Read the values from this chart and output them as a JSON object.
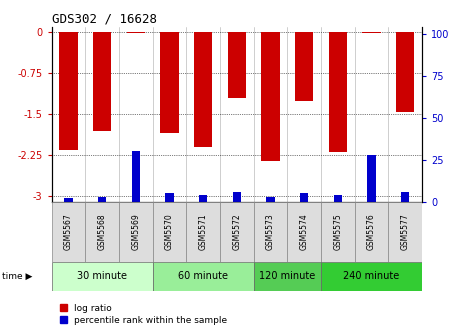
{
  "title": "GDS302 / 16628",
  "samples": [
    "GSM5567",
    "GSM5568",
    "GSM5569",
    "GSM5570",
    "GSM5571",
    "GSM5572",
    "GSM5573",
    "GSM5574",
    "GSM5575",
    "GSM5576",
    "GSM5577"
  ],
  "log_ratios": [
    -2.15,
    -1.8,
    -0.02,
    -1.85,
    -2.1,
    -1.2,
    -2.35,
    -1.25,
    -2.2,
    -0.01,
    -1.45
  ],
  "percentile_ranks": [
    2,
    3,
    30,
    5,
    4,
    6,
    3,
    5,
    4,
    28,
    6
  ],
  "groups": [
    {
      "label": "30 minute",
      "start": 0,
      "end": 3,
      "color": "#ccffcc"
    },
    {
      "label": "60 minute",
      "start": 3,
      "end": 6,
      "color": "#99ee99"
    },
    {
      "label": "120 minute",
      "start": 6,
      "end": 8,
      "color": "#66dd66"
    },
    {
      "label": "240 minute",
      "start": 8,
      "end": 11,
      "color": "#33cc33"
    }
  ],
  "ylim_left": [
    -3.1,
    0.1
  ],
  "ylim_right": [
    0,
    104
  ],
  "yticks_left": [
    0,
    -0.75,
    -1.5,
    -2.25,
    -3
  ],
  "yticks_right": [
    0,
    25,
    50,
    75,
    100
  ],
  "bar_color": "#cc0000",
  "percentile_color": "#0000cc",
  "bar_width": 0.55,
  "percentile_bar_width": 0.25,
  "bg_color": "#ffffff",
  "axes_label_color_left": "#cc0000",
  "axes_label_color_right": "#0000cc",
  "sample_box_color": "#dddddd",
  "legend_red": "log ratio",
  "legend_blue": "percentile rank within the sample",
  "time_label": "time"
}
